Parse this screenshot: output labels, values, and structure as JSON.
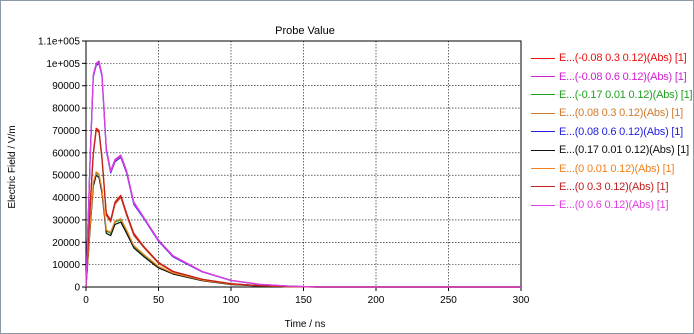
{
  "chart_data": {
    "type": "line",
    "title": "Probe Value",
    "xlabel": "Time / ns",
    "ylabel": "Electric Field / V/m",
    "xlim": [
      0,
      300
    ],
    "ylim": [
      0,
      110000
    ],
    "xticks": [
      0,
      50,
      100,
      150,
      200,
      250,
      300
    ],
    "yticks": [
      0,
      10000,
      20000,
      30000,
      40000,
      50000,
      60000,
      70000,
      80000,
      90000,
      100000,
      110000
    ],
    "ytick_labels": [
      "0",
      "10000",
      "20000",
      "30000",
      "40000",
      "50000",
      "60000",
      "70000",
      "80000",
      "90000",
      "1e+005",
      "1.1e+005"
    ],
    "grid": true,
    "legend_position": "right",
    "series": [
      {
        "name": "E...(-0.08 0.3 0.12)(Abs) [1]",
        "color": "#e81010",
        "x": [
          0,
          3,
          5,
          7,
          9,
          11,
          14,
          17,
          20,
          24,
          28,
          33,
          40,
          50,
          60,
          80,
          100,
          120,
          140,
          160,
          300
        ],
        "y": [
          0,
          38000,
          60000,
          71000,
          70000,
          58000,
          33000,
          30000,
          38000,
          41000,
          33000,
          24000,
          18000,
          11000,
          7000,
          3500,
          1500,
          600,
          200,
          0,
          0
        ]
      },
      {
        "name": "E...(-0.08 0.6 0.12)(Abs) [1]",
        "color": "#d020d0",
        "x": [
          0,
          3,
          5,
          7,
          9,
          11,
          14,
          17,
          20,
          24,
          28,
          33,
          40,
          50,
          60,
          80,
          100,
          120,
          140,
          160,
          300
        ],
        "y": [
          0,
          60000,
          95000,
          100000,
          101000,
          95000,
          62000,
          52000,
          57000,
          59000,
          52000,
          38000,
          31000,
          21000,
          14000,
          7000,
          3000,
          1200,
          400,
          0,
          0
        ]
      },
      {
        "name": "E...(-0.17 0.01 0.12)(Abs) [1]",
        "color": "#20a020",
        "x": [
          0,
          3,
          5,
          7,
          9,
          11,
          14,
          17,
          20,
          24,
          28,
          33,
          40,
          50,
          60,
          80,
          100,
          120,
          140,
          160,
          300
        ],
        "y": [
          0,
          28000,
          46000,
          51000,
          50000,
          43000,
          25000,
          24000,
          29000,
          30000,
          25000,
          18000,
          14000,
          9000,
          6000,
          3000,
          1200,
          500,
          150,
          0,
          0
        ]
      },
      {
        "name": "E...(0.08 0.3 0.12)(Abs) [1]",
        "color": "#d07a30",
        "x": [
          0,
          3,
          5,
          7,
          9,
          11,
          14,
          17,
          20,
          24,
          28,
          33,
          40,
          50,
          60,
          80,
          100,
          120,
          140,
          160,
          300
        ],
        "y": [
          0,
          37000,
          59000,
          70000,
          69000,
          57000,
          32000,
          29000,
          37000,
          40000,
          32000,
          23000,
          17500,
          10500,
          6800,
          3400,
          1400,
          550,
          180,
          0,
          0
        ]
      },
      {
        "name": "E...(0.08 0.6 0.12)(Abs) [1]",
        "color": "#2020e0",
        "x": [
          0,
          3,
          5,
          7,
          9,
          11,
          14,
          17,
          20,
          24,
          28,
          33,
          40,
          50,
          60,
          80,
          100,
          120,
          140,
          160,
          300
        ],
        "y": [
          0,
          59000,
          94000,
          99000,
          100000,
          94000,
          61000,
          51000,
          56000,
          58000,
          51000,
          37000,
          30500,
          20500,
          13500,
          6800,
          2900,
          1100,
          380,
          0,
          0
        ]
      },
      {
        "name": "E...(0.17 0.01 0.12)(Abs) [1]",
        "color": "#101010",
        "x": [
          0,
          3,
          5,
          7,
          9,
          11,
          14,
          17,
          20,
          24,
          28,
          33,
          40,
          50,
          60,
          80,
          100,
          120,
          140,
          160,
          300
        ],
        "y": [
          0,
          27000,
          45000,
          50000,
          49000,
          42000,
          24000,
          23000,
          28000,
          29000,
          24000,
          17500,
          13500,
          8500,
          5800,
          2800,
          1100,
          450,
          130,
          0,
          0
        ]
      },
      {
        "name": "E...(0 0.01 0.12)(Abs) [1]",
        "color": "#f08020",
        "x": [
          0,
          3,
          5,
          7,
          9,
          11,
          14,
          17,
          20,
          24,
          28,
          33,
          40,
          50,
          60,
          80,
          100,
          120,
          140,
          160,
          300
        ],
        "y": [
          0,
          28500,
          46500,
          51500,
          50500,
          43500,
          25500,
          24500,
          29500,
          30500,
          25500,
          18500,
          14500,
          9200,
          6200,
          3100,
          1250,
          520,
          160,
          0,
          0
        ]
      },
      {
        "name": "E...(0 0.3 0.12)(Abs) [1]",
        "color": "#c02020",
        "x": [
          0,
          3,
          5,
          7,
          9,
          11,
          14,
          17,
          20,
          24,
          28,
          33,
          40,
          50,
          60,
          80,
          100,
          120,
          140,
          160,
          300
        ],
        "y": [
          0,
          37500,
          59500,
          70500,
          69500,
          57500,
          32500,
          29500,
          37500,
          40500,
          32500,
          23500,
          17800,
          10800,
          6900,
          3450,
          1450,
          580,
          190,
          0,
          0
        ]
      },
      {
        "name": "E...(0 0.6 0.12)(Abs) [1]",
        "color": "#e040e0",
        "x": [
          0,
          3,
          5,
          7,
          9,
          11,
          14,
          17,
          20,
          24,
          28,
          33,
          40,
          50,
          60,
          80,
          100,
          120,
          140,
          160,
          300
        ],
        "y": [
          0,
          59500,
          94500,
          99500,
          100500,
          94500,
          61500,
          51500,
          56500,
          58500,
          51500,
          37500,
          30800,
          20800,
          13800,
          6900,
          2950,
          1150,
          390,
          0,
          0
        ]
      }
    ]
  }
}
